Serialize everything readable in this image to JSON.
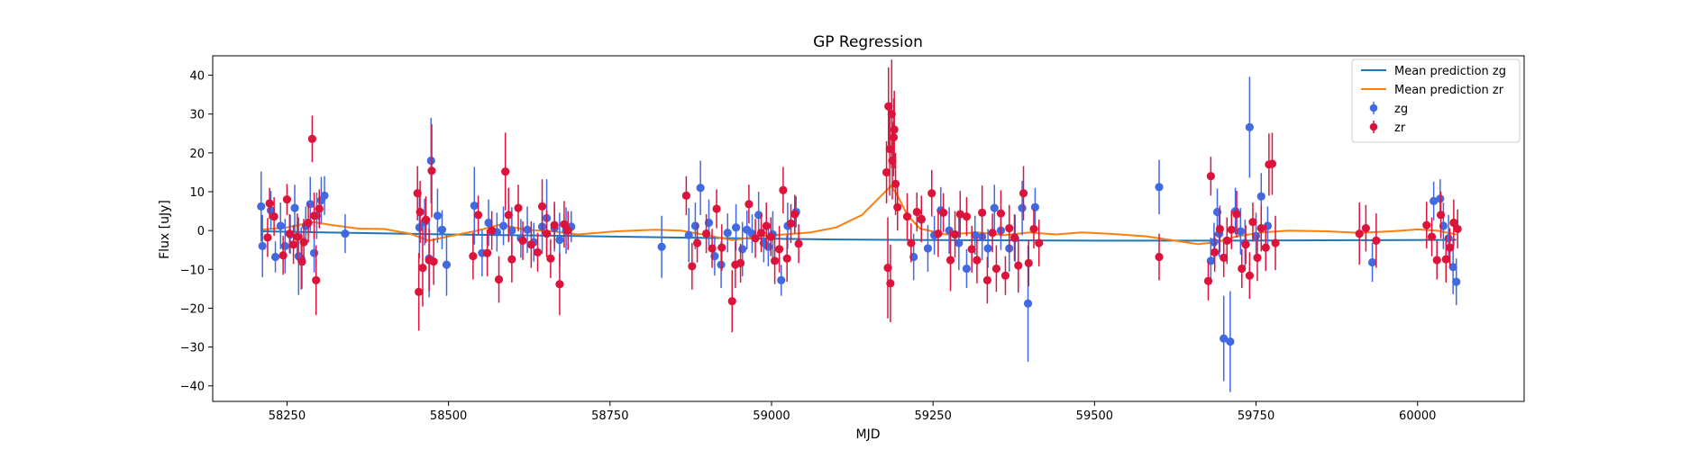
{
  "chart_data": {
    "type": "scatter",
    "title": "GP Regression",
    "xlabel": "MJD",
    "ylabel": "Flux [uJy]",
    "xlim": [
      58135,
      60165
    ],
    "ylim": [
      -44,
      45
    ],
    "xticks": [
      58250,
      58500,
      58750,
      59000,
      59250,
      59500,
      59750,
      60000
    ],
    "yticks": [
      -40,
      -30,
      -20,
      -10,
      0,
      10,
      20,
      30,
      40
    ],
    "grid": false,
    "legend_position": "top-right",
    "legend": [
      {
        "label": "Mean prediction zg",
        "kind": "line",
        "color": "#1f77b4"
      },
      {
        "label": "Mean prediction zr",
        "kind": "line",
        "color": "#ff7f0e"
      },
      {
        "label": "zg",
        "kind": "errorbar",
        "color": "#4169e1"
      },
      {
        "label": "zr",
        "kind": "errorbar",
        "color": "#dc143c"
      }
    ],
    "lines": [
      {
        "name": "Mean prediction zg",
        "color": "#1f77b4",
        "x": [
          58210,
          58350,
          58500,
          58700,
          58900,
          59100,
          59300,
          59500,
          59700,
          59900,
          60060
        ],
        "y": [
          -0.2,
          -0.6,
          -1.0,
          -1.4,
          -1.9,
          -2.3,
          -2.5,
          -2.6,
          -2.6,
          -2.5,
          -2.4
        ]
      },
      {
        "name": "Mean prediction zr",
        "color": "#ff7f0e",
        "x": [
          58210,
          58250,
          58290,
          58320,
          58360,
          58400,
          58440,
          58470,
          58500,
          58540,
          58580,
          58620,
          58660,
          58700,
          58760,
          58820,
          58860,
          58900,
          58940,
          58980,
          59020,
          59060,
          59100,
          59140,
          59170,
          59185,
          59195,
          59210,
          59230,
          59270,
          59320,
          59360,
          59400,
          59440,
          59480,
          59520,
          59580,
          59620,
          59660,
          59690,
          59720,
          59760,
          59800,
          59860,
          59910,
          59960,
          60000,
          60030,
          60060
        ],
        "y": [
          0.2,
          0.8,
          2.2,
          1.4,
          0.5,
          0.4,
          -0.8,
          -2.6,
          -1.5,
          -0.2,
          1.5,
          0.2,
          -0.2,
          -1.0,
          -0.2,
          0.2,
          0.0,
          -1.2,
          -2.5,
          -1.5,
          -1.0,
          -0.5,
          0.8,
          4.0,
          9.0,
          11.5,
          9.0,
          4.0,
          0.5,
          -1.0,
          -0.5,
          -1.2,
          -0.5,
          -1.0,
          -0.5,
          -0.8,
          -1.5,
          -2.5,
          -3.5,
          -3.0,
          -1.5,
          -0.5,
          0.0,
          -0.2,
          -0.6,
          -0.2,
          0.3,
          0.0,
          -1.0
        ]
      }
    ],
    "series": [
      {
        "name": "zg",
        "color": "#4169e1",
        "x": [
          58210,
          58212,
          58225,
          58232,
          58240,
          58247,
          58255,
          58262,
          58268,
          58272,
          58279,
          58286,
          58292,
          58296,
          58303,
          58308,
          58340,
          58455,
          58463,
          58470,
          58473,
          58483,
          58490,
          58497,
          58540,
          58552,
          58562,
          58575,
          58585,
          58598,
          58612,
          58622,
          58632,
          58645,
          58652,
          58664,
          58672,
          58682,
          58690,
          58830,
          58872,
          58882,
          58890,
          58903,
          58912,
          58922,
          58932,
          58945,
          58955,
          58962,
          58970,
          58980,
          58988,
          58995,
          59002,
          59015,
          59025,
          59038,
          59220,
          59232,
          59242,
          59252,
          59262,
          59275,
          59290,
          59302,
          59315,
          59326,
          59335,
          59345,
          59355,
          59368,
          59377,
          59388,
          59397,
          59408,
          59600,
          59680,
          59685,
          59690,
          59693,
          59700,
          59710,
          59718,
          59726,
          59733,
          59740,
          59750,
          59758,
          59768,
          60025,
          60035,
          60040,
          60048,
          60055,
          60060,
          59930
        ],
        "y": [
          6.2,
          -4.0,
          5.2,
          -6.8,
          1.2,
          -4.0,
          -1.0,
          5.8,
          -6.6,
          -7.2,
          1.2,
          6.8,
          -5.8,
          3.8,
          7.8,
          9.0,
          -0.8,
          0.8,
          2.2,
          -7.2,
          18.0,
          3.8,
          0.2,
          -8.8,
          6.4,
          -5.8,
          2.0,
          -0.4,
          1.2,
          0.0,
          -2.0,
          0.2,
          -3.0,
          1.0,
          3.2,
          0.6,
          -2.4,
          0.0,
          1.0,
          -4.2,
          -1.2,
          1.2,
          11.0,
          2.0,
          -6.6,
          -8.8,
          -0.6,
          0.8,
          -4.8,
          0.2,
          -0.8,
          4.0,
          -3.2,
          -4.2,
          -1.0,
          -12.8,
          1.2,
          4.8,
          -6.8,
          2.8,
          -4.6,
          -1.2,
          5.2,
          0.0,
          -3.2,
          -9.8,
          -1.2,
          -1.6,
          -4.6,
          5.8,
          0.0,
          -4.6,
          -2.0,
          5.8,
          -18.8,
          6.0,
          11.2,
          -7.8,
          -3.0,
          4.8,
          -0.8,
          -27.8,
          -28.6,
          5.0,
          -0.2,
          -3.2,
          26.6,
          -1.4,
          8.8,
          1.2,
          7.6,
          8.2,
          1.2,
          -2.0,
          -9.4,
          -13.2,
          -8.2
        ],
        "err": [
          9,
          8,
          5,
          4,
          6,
          7,
          5,
          6,
          10,
          8,
          5,
          7,
          5,
          6,
          6,
          5,
          5,
          8,
          6,
          10,
          11,
          7,
          5,
          8,
          10,
          6,
          6,
          5,
          5,
          6,
          5,
          6,
          5,
          7,
          10,
          6,
          7,
          6,
          4,
          8,
          7,
          6,
          7,
          6,
          5,
          6,
          5,
          6,
          7,
          5,
          5,
          6,
          5,
          5,
          6,
          4,
          6,
          4,
          6,
          5,
          6,
          5,
          6,
          6,
          7,
          5,
          5,
          6,
          5,
          6,
          5,
          6,
          6,
          7,
          15,
          5,
          7,
          6,
          5,
          6,
          6,
          11,
          13,
          6,
          6,
          6,
          13,
          6,
          6,
          5,
          5,
          5,
          6,
          6,
          7,
          6,
          5
        ]
      },
      {
        "name": "zr",
        "color": "#dc143c",
        "x": [
          58220,
          58223,
          58230,
          58244,
          58250,
          58254,
          58260,
          58266,
          58273,
          58276,
          58283,
          58289,
          58292,
          58295,
          58300,
          58452,
          58454,
          58456,
          58460,
          58465,
          58470,
          58474,
          58477,
          58538,
          58546,
          58560,
          58567,
          58578,
          58588,
          58593,
          58598,
          58608,
          58615,
          58628,
          58638,
          58645,
          58652,
          58658,
          58664,
          58672,
          58679,
          58685,
          58868,
          58877,
          58885,
          58899,
          58908,
          58915,
          58923,
          58939,
          58944,
          58952,
          58965,
          58975,
          58984,
          58992,
          58999,
          59005,
          59012,
          59018,
          59024,
          59030,
          59036,
          59042,
          59178,
          59180,
          59181,
          59183,
          59184,
          59186,
          59187,
          59189,
          59190,
          59192,
          59195,
          59210,
          59216,
          59225,
          59232,
          59248,
          59258,
          59266,
          59277,
          59284,
          59292,
          59302,
          59310,
          59318,
          59326,
          59334,
          59342,
          59348,
          59355,
          59362,
          59368,
          59376,
          59382,
          59390,
          59398,
          59406,
          59414,
          59600,
          59676,
          59680,
          59686,
          59694,
          59700,
          59705,
          59712,
          59720,
          59728,
          59734,
          59740,
          59745,
          59752,
          59758,
          59765,
          59770,
          59775,
          59780,
          59910,
          59920,
          59936,
          60014,
          60022,
          60030,
          60036,
          60044,
          60050,
          60056,
          60062
        ],
        "y": [
          -1.8,
          7.0,
          3.6,
          -6.4,
          8.0,
          -0.8,
          -3.6,
          -1.6,
          -8.0,
          -3.0,
          2.0,
          23.6,
          3.8,
          -12.8,
          5.6,
          9.6,
          -15.8,
          4.8,
          -9.6,
          2.8,
          -7.6,
          15.4,
          -8.0,
          -6.6,
          4.0,
          -5.8,
          0.0,
          -12.6,
          15.2,
          4.0,
          -7.4,
          5.8,
          -2.6,
          -3.6,
          -5.6,
          6.2,
          -0.8,
          -7.2,
          1.4,
          -13.8,
          1.6,
          0.0,
          9.0,
          -9.2,
          -3.2,
          -0.8,
          -4.6,
          5.6,
          -4.4,
          -18.2,
          -8.8,
          -8.4,
          6.8,
          -2.0,
          -0.6,
          1.2,
          -1.6,
          -7.8,
          -4.8,
          10.4,
          -7.2,
          1.8,
          4.2,
          -3.4,
          15.0,
          -9.6,
          32.0,
          21.0,
          -13.6,
          30.0,
          18.0,
          24.0,
          26.0,
          12.0,
          6.0,
          3.6,
          -3.2,
          4.8,
          3.0,
          9.6,
          -0.8,
          4.6,
          -7.6,
          -1.0,
          4.2,
          3.6,
          -4.8,
          -7.6,
          4.6,
          -12.8,
          -0.6,
          -9.8,
          4.4,
          -11.6,
          0.6,
          -1.8,
          -9.0,
          9.6,
          -8.4,
          0.4,
          -3.2,
          -6.8,
          -13.0,
          14.0,
          -5.6,
          0.4,
          -7.0,
          -2.6,
          0.2,
          4.2,
          -9.8,
          -3.6,
          -11.6,
          2.2,
          -7.0,
          0.6,
          -4.4,
          17.0,
          17.2,
          -3.2,
          -0.8,
          0.6,
          -2.6,
          1.4,
          -1.6,
          -7.6,
          4.0,
          -7.4,
          -4.4,
          2.0,
          0.4
        ],
        "err": [
          5,
          4,
          5,
          5,
          4,
          5,
          5,
          6,
          7,
          6,
          5,
          6,
          6,
          9,
          5,
          7,
          10,
          8,
          10,
          6,
          8,
          12,
          6,
          6,
          5,
          6,
          5,
          6,
          10,
          7,
          6,
          6,
          5,
          6,
          5,
          7,
          6,
          5,
          6,
          8,
          6,
          5,
          5,
          6,
          5,
          5,
          5,
          5,
          6,
          8,
          6,
          5,
          5,
          5,
          5,
          6,
          5,
          6,
          6,
          6,
          6,
          5,
          5,
          5,
          8,
          13,
          10,
          12,
          10,
          14,
          10,
          10,
          10,
          8,
          6,
          6,
          5,
          5,
          6,
          6,
          6,
          5,
          8,
          6,
          6,
          5,
          6,
          6,
          7,
          6,
          5,
          6,
          6,
          5,
          6,
          6,
          7,
          7,
          6,
          5,
          6,
          6,
          5,
          5,
          5,
          6,
          5,
          6,
          5,
          6,
          5,
          5,
          6,
          5,
          6,
          6,
          6,
          8,
          8,
          7,
          8,
          6,
          7,
          6,
          5,
          5,
          6,
          6,
          5,
          6,
          5
        ]
      }
    ]
  }
}
